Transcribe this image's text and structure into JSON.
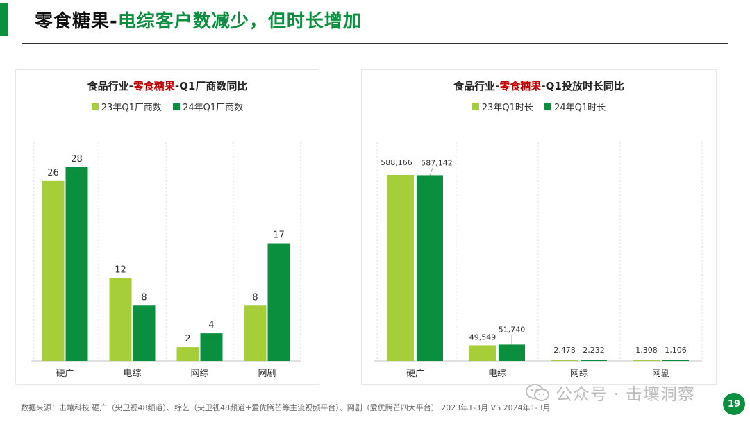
{
  "header": {
    "title_main": "零食糖果-",
    "title_sub": "电综客户数减少，但时长增加"
  },
  "colors": {
    "series_23": "#a6ce39",
    "series_24": "#0a8f3f",
    "accent": "#0a8f3f",
    "highlight": "#c00000"
  },
  "chart_data": [
    {
      "type": "bar",
      "title_prefix": "食品行业-",
      "title_highlight": "零食糖果",
      "title_suffix": "-Q1厂商数同比",
      "categories": [
        "硬广",
        "电综",
        "网综",
        "网剧"
      ],
      "series": [
        {
          "name": "23年Q1厂商数",
          "values": [
            26,
            12,
            2,
            8
          ],
          "labels": [
            "26",
            "12",
            "2",
            "8"
          ]
        },
        {
          "name": "24年Q1厂商数",
          "values": [
            28,
            8,
            4,
            17
          ],
          "labels": [
            "28",
            "8",
            "4",
            "17"
          ]
        }
      ],
      "ylim": [
        0,
        32
      ],
      "grid": false
    },
    {
      "type": "bar",
      "title_prefix": "食品行业-",
      "title_highlight": "零食糖果",
      "title_suffix": "-Q1投放时长同比",
      "categories": [
        "硬广",
        "电综",
        "网综",
        "网剧"
      ],
      "series": [
        {
          "name": "23年Q1时长",
          "values": [
            588166,
            49549,
            2478,
            1308
          ],
          "labels": [
            "588,166",
            "49,549",
            "2,478",
            "1,308"
          ]
        },
        {
          "name": "24年Q1时长",
          "values": [
            587142,
            51740,
            2232,
            1106
          ],
          "labels": [
            "587,142",
            "51,740",
            "2,232",
            "1,106"
          ]
        }
      ],
      "ylim": [
        0,
        700000
      ],
      "grid": false
    }
  ],
  "footer": {
    "source": "数据来源：击壤科技 硬广（央卫视48频道）、综艺（央卫视48频道+爱优腾芒等主流视频平台）、网剧（爱优腾芒四大平台） 2023年1-3月 VS 2024年1-3月"
  },
  "watermark": {
    "text": "公众号 · 击壤洞察"
  },
  "page": {
    "number": "19"
  }
}
